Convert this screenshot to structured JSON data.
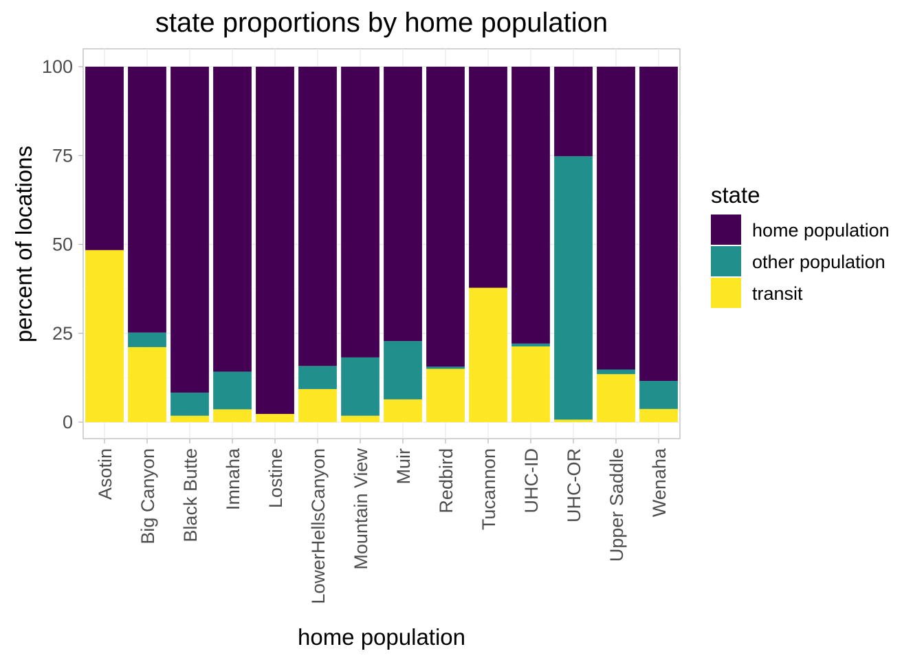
{
  "chart_data": {
    "type": "bar",
    "stacked": true,
    "title": "state proportions by home population",
    "xlabel": "home population",
    "ylabel": "percent of locations",
    "ylim": [
      0,
      100
    ],
    "yticks": [
      0,
      25,
      50,
      75,
      100
    ],
    "categories": [
      "Asotin",
      "Big Canyon",
      "Black Butte",
      "Imnaha",
      "Lostine",
      "LowerHellsCanyon",
      "Mountain View",
      "Muir",
      "Redbird",
      "Tucannon",
      "UHC-ID",
      "UHC-OR",
      "Upper Saddle",
      "Wenaha"
    ],
    "series": [
      {
        "name": "transit",
        "color": "#FDE725",
        "values": [
          48.4,
          21.1,
          1.8,
          3.6,
          2.3,
          9.3,
          1.8,
          6.4,
          15.0,
          37.8,
          21.3,
          0.7,
          13.5,
          3.7
        ]
      },
      {
        "name": "other population",
        "color": "#21908C",
        "values": [
          0.0,
          4.1,
          6.5,
          10.6,
          0.0,
          6.5,
          16.4,
          16.4,
          0.6,
          0.0,
          0.8,
          74.1,
          1.3,
          7.9
        ]
      },
      {
        "name": "home population",
        "color": "#440154",
        "values": [
          51.6,
          74.8,
          91.7,
          85.8,
          97.7,
          84.2,
          81.8,
          77.2,
          84.4,
          62.2,
          77.9,
          25.2,
          85.2,
          88.4
        ]
      }
    ],
    "legend": {
      "title": "state",
      "position": "right",
      "entries": [
        {
          "label": "home population",
          "color": "#440154"
        },
        {
          "label": "other population",
          "color": "#21908C"
        },
        {
          "label": "transit",
          "color": "#FDE725"
        }
      ]
    },
    "grid": true
  }
}
